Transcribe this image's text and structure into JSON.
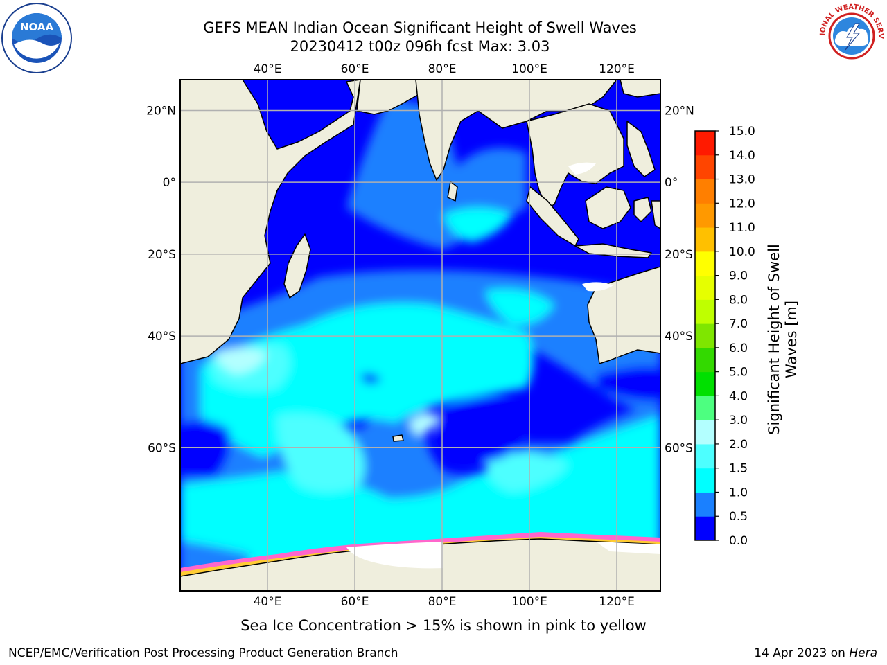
{
  "header": {
    "title_line1": "GEFS MEAN Indian Ocean Significant Height of Swell Waves",
    "title_line2": "20230412 t00z 096h fcst   Max: 3.03"
  },
  "logos": {
    "left": "noaa-logo",
    "right": "nws-logo",
    "left_text": "NOAA",
    "right_text": "NATIONAL WEATHER SERVICE"
  },
  "map": {
    "lon_labels": [
      "40°E",
      "60°E",
      "80°E",
      "100°E",
      "120°E"
    ],
    "lat_labels": [
      "20°N",
      "0°",
      "20°S",
      "40°S",
      "60°S"
    ],
    "lon_range": [
      20,
      130
    ],
    "lat_range": [
      -75,
      28
    ],
    "colors": {
      "land": "#efeedd",
      "grid": "#b0b0b0",
      "coast": "#000000"
    }
  },
  "colorbar": {
    "title": "Significant Height of Swell Waves [m]",
    "levels": [
      "0.0",
      "0.5",
      "1.0",
      "1.5",
      "2.0",
      "3.0",
      "4.0",
      "5.0",
      "6.0",
      "7.0",
      "8.0",
      "9.0",
      "10.0",
      "11.0",
      "12.0",
      "13.0",
      "14.0",
      "15.0"
    ],
    "colors": [
      "#0000ff",
      "#1a80ff",
      "#00ffff",
      "#4dffff",
      "#b3ffff",
      "#4dff80",
      "#00e000",
      "#33d900",
      "#7fe600",
      "#bfff00",
      "#e6ff00",
      "#ffff00",
      "#ffc000",
      "#ff9900",
      "#ff7f00",
      "#ff4500",
      "#ff1a00"
    ]
  },
  "footnote": "Sea Ice Concentration > 15% is shown in pink to yellow",
  "footer": {
    "credit": "NCEP/EMC/Verification Post Processing Product Generation Branch",
    "date": "14 Apr 2023 on",
    "host": "Hera"
  }
}
